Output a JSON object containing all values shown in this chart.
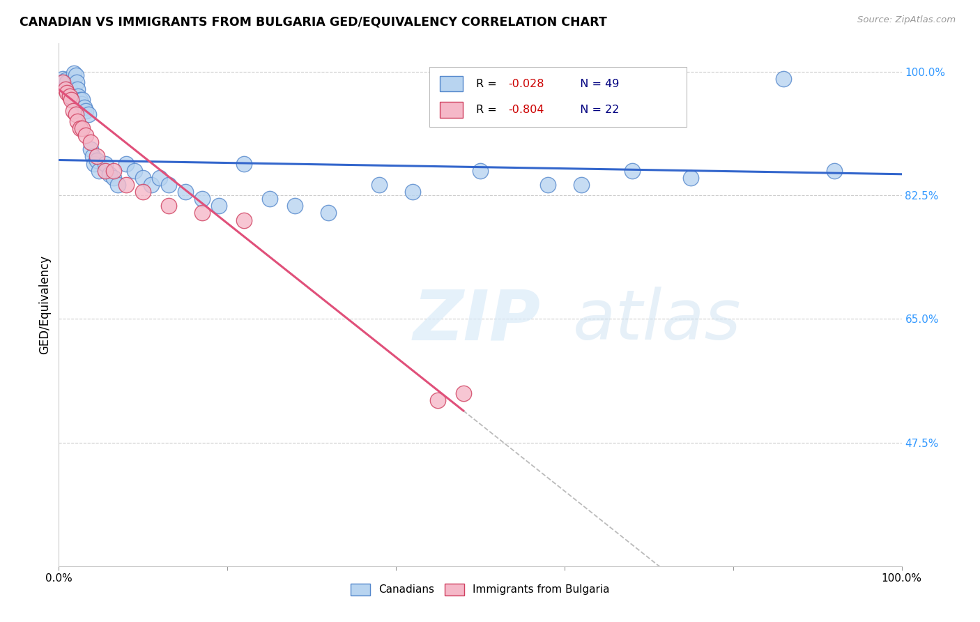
{
  "title": "CANADIAN VS IMMIGRANTS FROM BULGARIA GED/EQUIVALENCY CORRELATION CHART",
  "source": "Source: ZipAtlas.com",
  "ylabel": "GED/Equivalency",
  "xlim": [
    0.0,
    1.0
  ],
  "ylim": [
    0.3,
    1.04
  ],
  "yticks": [
    0.475,
    0.65,
    0.825,
    1.0
  ],
  "ytick_labels": [
    "47.5%",
    "65.0%",
    "82.5%",
    "100.0%"
  ],
  "canadians_x": [
    0.005,
    0.008,
    0.01,
    0.012,
    0.013,
    0.015,
    0.017,
    0.018,
    0.02,
    0.021,
    0.022,
    0.023,
    0.025,
    0.027,
    0.028,
    0.03,
    0.032,
    0.035,
    0.038,
    0.04,
    0.042,
    0.045,
    0.048,
    0.055,
    0.06,
    0.065,
    0.07,
    0.08,
    0.09,
    0.1,
    0.11,
    0.12,
    0.13,
    0.15,
    0.17,
    0.19,
    0.22,
    0.25,
    0.28,
    0.32,
    0.38,
    0.42,
    0.5,
    0.58,
    0.62,
    0.68,
    0.75,
    0.86,
    0.92
  ],
  "canadians_y": [
    0.99,
    0.988,
    0.985,
    0.97,
    0.975,
    0.965,
    0.96,
    0.998,
    0.995,
    0.985,
    0.975,
    0.965,
    0.96,
    0.955,
    0.96,
    0.95,
    0.945,
    0.94,
    0.89,
    0.88,
    0.87,
    0.875,
    0.86,
    0.87,
    0.855,
    0.85,
    0.84,
    0.87,
    0.86,
    0.85,
    0.84,
    0.85,
    0.84,
    0.83,
    0.82,
    0.81,
    0.87,
    0.82,
    0.81,
    0.8,
    0.84,
    0.83,
    0.86,
    0.84,
    0.84,
    0.86,
    0.85,
    0.99,
    0.86
  ],
  "bulgaria_x": [
    0.005,
    0.008,
    0.01,
    0.013,
    0.015,
    0.017,
    0.02,
    0.022,
    0.025,
    0.028,
    0.032,
    0.038,
    0.045,
    0.055,
    0.065,
    0.08,
    0.1,
    0.13,
    0.17,
    0.22,
    0.45,
    0.48
  ],
  "bulgaria_y": [
    0.985,
    0.975,
    0.97,
    0.965,
    0.96,
    0.945,
    0.94,
    0.93,
    0.92,
    0.92,
    0.91,
    0.9,
    0.88,
    0.86,
    0.86,
    0.84,
    0.83,
    0.81,
    0.8,
    0.79,
    0.535,
    0.545
  ],
  "r_canadian": -0.028,
  "n_canadian": 49,
  "r_bulgaria": -0.804,
  "n_bulgaria": 22,
  "canadian_color": "#b8d4f0",
  "canadian_border": "#5588cc",
  "bulgaria_color": "#f5b8c8",
  "bulgaria_border": "#d04060",
  "trend_canadian_color": "#3366cc",
  "trend_bulgaria_color": "#e0507a",
  "trend_extend_color": "#bbbbbb",
  "watermark_zip": "ZIP",
  "watermark_atlas": "atlas",
  "background_color": "#ffffff",
  "grid_color": "#cccccc",
  "legend_r_color": "#cc0000",
  "legend_n_color": "#000080"
}
